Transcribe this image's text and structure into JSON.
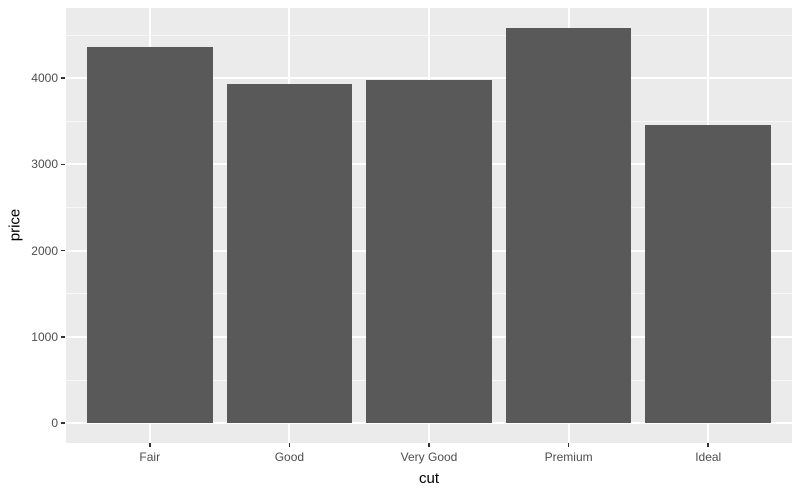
{
  "chart_data": {
    "type": "bar",
    "title": "",
    "xlabel": "cut",
    "ylabel": "price",
    "categories": [
      "Fair",
      "Good",
      "Very Good",
      "Premium",
      "Ideal"
    ],
    "values": [
      4358.76,
      3928.86,
      3981.76,
      4584.26,
      3457.54
    ],
    "yticks": [
      0,
      1000,
      2000,
      3000,
      4000
    ],
    "ytick_labels": [
      "0",
      "1000",
      "2000",
      "3000",
      "4000"
    ],
    "minor_yticks": [
      500,
      1500,
      2500,
      3500,
      4500
    ],
    "ylim": [
      -229.2,
      4813.5
    ],
    "bar_rel_width": 0.9,
    "x_expand": 0.6,
    "grid": "on",
    "legend": "none",
    "style": "ggplot2-theme-grey",
    "colors": {
      "bar_fill": "#595959",
      "panel_bg": "#EBEBEB",
      "grid_major": "#FFFFFF",
      "grid_minor": "#FFFFFF",
      "tick_label": "#4D4D4D",
      "axis_title": "#000000",
      "tick_mark": "#333333",
      "page_bg": "#FFFFFF"
    }
  }
}
